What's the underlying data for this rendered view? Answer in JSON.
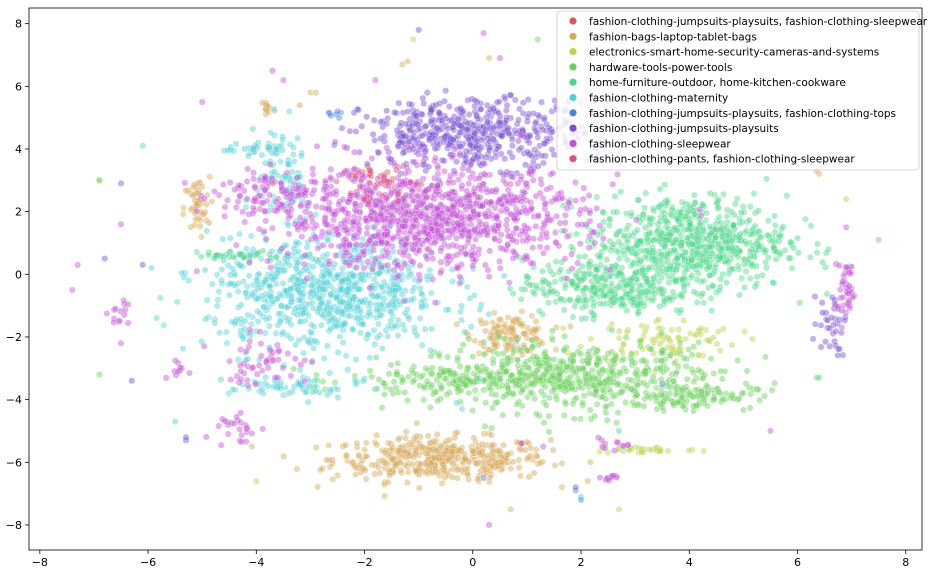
{
  "chart_data": {
    "type": "scatter",
    "title": "",
    "xlabel": "",
    "ylabel": "",
    "xlim": [
      -8.2,
      8.3
    ],
    "ylim": [
      -8.8,
      8.5
    ],
    "xticks": [
      -8,
      -6,
      -4,
      -2,
      0,
      2,
      4,
      6,
      8
    ],
    "yticks": [
      -8,
      -6,
      -4,
      -2,
      0,
      2,
      4,
      6,
      8
    ],
    "grid": false,
    "legend_position": "top-right",
    "point_alpha": 0.45,
    "series": [
      {
        "name": "fashion-clothing-jumpsuits-playsuits, fashion-clothing-sleepwear",
        "color": "#d95757",
        "clusters": [
          {
            "cx": -1.8,
            "cy": 3.1,
            "sx": 0.35,
            "sy": 0.25,
            "n": 25
          }
        ],
        "points": [
          [
            -1.9,
            3.2
          ],
          [
            -1.6,
            3.0
          ]
        ]
      },
      {
        "name": "fashion-bags-laptop-tablet-bags",
        "color": "#d8a85c",
        "clusters": [
          {
            "cx": -0.6,
            "cy": -5.9,
            "sx": 1.0,
            "sy": 0.35,
            "n": 420
          },
          {
            "cx": 0.7,
            "cy": -1.9,
            "sx": 0.35,
            "sy": 0.3,
            "n": 120
          },
          {
            "cx": -5.1,
            "cy": 2.1,
            "sx": 0.12,
            "sy": 0.5,
            "n": 45
          },
          {
            "cx": -3.8,
            "cy": 5.3,
            "sx": 0.08,
            "sy": 0.2,
            "n": 12
          }
        ],
        "points": [
          [
            -3.0,
            5.8
          ],
          [
            -2.9,
            5.8
          ],
          [
            -3.2,
            5.4
          ],
          [
            0.7,
            -7.5
          ],
          [
            6.4,
            3.2
          ],
          [
            6.35,
            3.3
          ],
          [
            -1.3,
            6.7
          ],
          [
            -1.2,
            6.8
          ],
          [
            0.3,
            6.9
          ],
          [
            -5.0,
            2.8
          ]
        ]
      },
      {
        "name": "electronics-smart-home-security-cameras-and-systems",
        "color": "#bdd24f",
        "clusters": [
          {
            "cx": 3.2,
            "cy": -5.6,
            "sx": 0.5,
            "sy": 0.06,
            "n": 30
          },
          {
            "cx": 3.5,
            "cy": -2.1,
            "sx": 0.7,
            "sy": 0.35,
            "n": 90
          }
        ],
        "points": [
          [
            -1.1,
            7.5
          ],
          [
            6.9,
            2.4
          ],
          [
            2.7,
            -7.5
          ],
          [
            -4.0,
            -6.6
          ],
          [
            -6.9,
            3.0
          ]
        ]
      },
      {
        "name": "hardware-tools-power-tools",
        "color": "#6ad15a",
        "clusters": [
          {
            "cx": 2.0,
            "cy": -3.3,
            "sx": 1.3,
            "sy": 0.55,
            "n": 520
          },
          {
            "cx": -0.3,
            "cy": -3.4,
            "sx": 1.0,
            "sy": 0.3,
            "n": 160
          },
          {
            "cx": 4.0,
            "cy": -3.9,
            "sx": 0.6,
            "sy": 0.2,
            "n": 80
          }
        ],
        "points": [
          [
            7.5,
            1.1
          ],
          [
            -6.9,
            -3.2
          ],
          [
            1.2,
            7.5
          ],
          [
            6.35,
            -3.3
          ],
          [
            -6.9,
            3.0
          ]
        ]
      },
      {
        "name": "home-furniture-outdoor, home-kitchen-cookware",
        "color": "#4fd68c",
        "clusters": [
          {
            "cx": 4.0,
            "cy": 1.0,
            "sx": 0.9,
            "sy": 0.75,
            "n": 700
          },
          {
            "cx": 2.5,
            "cy": -0.4,
            "sx": 0.8,
            "sy": 0.45,
            "n": 300
          },
          {
            "cx": -4.3,
            "cy": 0.6,
            "sx": 0.4,
            "sy": 0.08,
            "n": 40
          }
        ],
        "points": [
          [
            -6.1,
            4.1
          ],
          [
            2.7,
            -5.0
          ],
          [
            6.4,
            -3.3
          ]
        ]
      },
      {
        "name": "fashion-clothing-maternity",
        "color": "#55d0d6",
        "clusters": [
          {
            "cx": -2.7,
            "cy": -0.6,
            "sx": 1.1,
            "sy": 0.9,
            "n": 750
          },
          {
            "cx": -3.5,
            "cy": 3.2,
            "sx": 0.25,
            "sy": 0.9,
            "n": 80
          },
          {
            "cx": -4.0,
            "cy": 4.0,
            "sx": 0.35,
            "sy": 0.08,
            "n": 30
          },
          {
            "cx": -3.3,
            "cy": -3.6,
            "sx": 0.6,
            "sy": 0.2,
            "n": 60
          }
        ],
        "points": [
          [
            -0.3,
            -4.1
          ],
          [
            -0.2,
            -4.3
          ],
          [
            -5.5,
            -4.7
          ],
          [
            2.0,
            -7.1
          ]
        ]
      },
      {
        "name": "fashion-clothing-jumpsuits-playsuits, fashion-clothing-tops",
        "color": "#4f82d8",
        "clusters": [
          {
            "cx": -2.6,
            "cy": 5.1,
            "sx": 0.1,
            "sy": 0.1,
            "n": 6
          }
        ],
        "points": [
          [
            1.9,
            -6.9
          ],
          [
            2.0,
            -7.2
          ],
          [
            -2.5,
            5.2
          ],
          [
            0.2,
            -6.5
          ],
          [
            3.5,
            -3.5
          ]
        ]
      },
      {
        "name": "fashion-clothing-jumpsuits-playsuits",
        "color": "#7a4fd2",
        "clusters": [
          {
            "cx": 0.0,
            "cy": 4.5,
            "sx": 1.0,
            "sy": 0.55,
            "n": 500
          },
          {
            "cx": 6.6,
            "cy": -1.5,
            "sx": 0.15,
            "sy": 0.5,
            "n": 35
          }
        ],
        "points": [
          [
            -6.8,
            0.5
          ],
          [
            -6.3,
            -3.4
          ],
          [
            -6.5,
            2.9
          ],
          [
            -6.1,
            0.3
          ],
          [
            -5.3,
            -5.3
          ],
          [
            -5.3,
            -5.2
          ],
          [
            1.9,
            -6.8
          ],
          [
            -1.0,
            7.8
          ]
        ]
      },
      {
        "name": "fashion-clothing-sleepwear",
        "color": "#c351d6",
        "clusters": [
          {
            "cx": -0.8,
            "cy": 1.8,
            "sx": 1.4,
            "sy": 0.8,
            "n": 1100
          },
          {
            "cx": -3.5,
            "cy": 2.5,
            "sx": 0.6,
            "sy": 0.35,
            "n": 100
          },
          {
            "cx": 6.9,
            "cy": -0.5,
            "sx": 0.1,
            "sy": 0.5,
            "n": 40
          },
          {
            "cx": -3.9,
            "cy": -2.8,
            "sx": 0.45,
            "sy": 0.4,
            "n": 50
          },
          {
            "cx": -4.3,
            "cy": -4.9,
            "sx": 0.2,
            "sy": 0.3,
            "n": 25
          },
          {
            "cx": -6.6,
            "cy": -1.3,
            "sx": 0.12,
            "sy": 0.2,
            "n": 14
          },
          {
            "cx": -5.5,
            "cy": -3.0,
            "sx": 0.12,
            "sy": 0.15,
            "n": 10
          },
          {
            "cx": 2.5,
            "cy": -6.5,
            "sx": 0.15,
            "sy": 0.05,
            "n": 10
          },
          {
            "cx": 2.6,
            "cy": -5.4,
            "sx": 0.25,
            "sy": 0.08,
            "n": 12
          }
        ],
        "points": [
          [
            -7.4,
            -0.5
          ],
          [
            -7.3,
            0.3
          ],
          [
            -5.1,
            0.1
          ],
          [
            -5.0,
            5.5
          ],
          [
            -6.5,
            1.6
          ],
          [
            0.5,
            6.9
          ],
          [
            0.2,
            7.7
          ],
          [
            6.9,
            1.5
          ],
          [
            5.5,
            -5.0
          ],
          [
            -6.5,
            -2.2
          ],
          [
            -3.7,
            6.5
          ],
          [
            -3.5,
            6.2
          ],
          [
            -1.8,
            6.2
          ],
          [
            0.9,
            -5.4
          ],
          [
            1.3,
            -5.5
          ],
          [
            0.3,
            -8.0
          ],
          [
            2.0,
            5.5
          ]
        ]
      },
      {
        "name": "fashion-clothing-pants, fashion-clothing-sleepwear",
        "color": "#d8508a",
        "clusters": [
          {
            "cx": -1.7,
            "cy": 2.8,
            "sx": 0.4,
            "sy": 0.3,
            "n": 20
          }
        ],
        "points": [
          [
            -1.7,
            2.9
          ],
          [
            -2.0,
            2.4
          ],
          [
            -3.7,
            2.9
          ]
        ]
      }
    ]
  }
}
